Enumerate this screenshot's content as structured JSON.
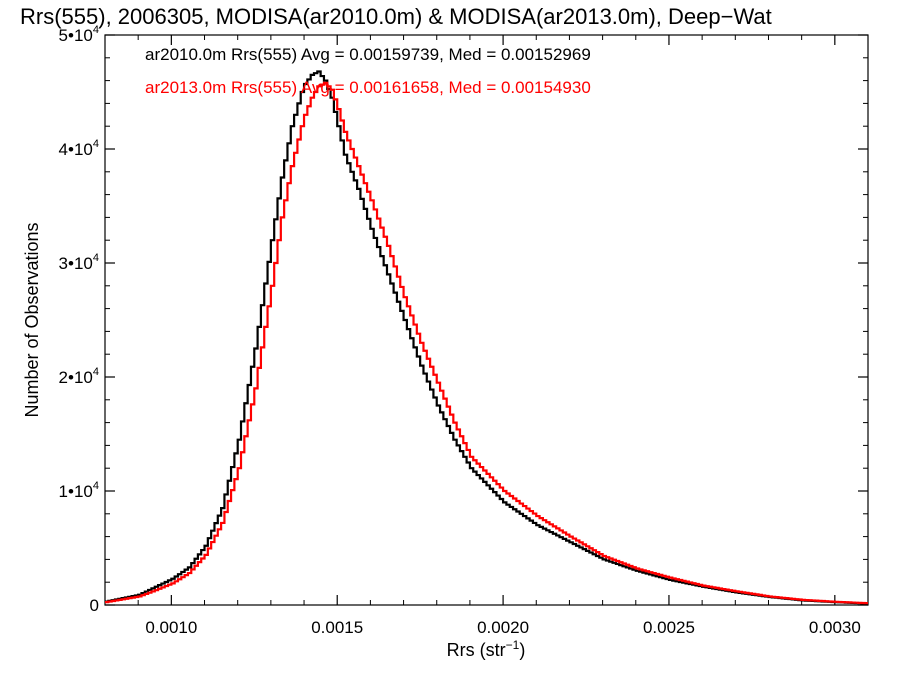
{
  "chart_data": {
    "type": "line",
    "step": true,
    "title": "Rrs(555), 2006305, MODISA(ar2010.0m) & MODISA(ar2013.0m), Deep−Wat",
    "xlabel": "Rrs (str",
    "xlabel_sup": "−1",
    "xlabel_end": ")",
    "ylabel": "Number of Observations",
    "xlim": [
      0.0008,
      0.0031
    ],
    "ylim": [
      0,
      50000
    ],
    "x_ticks": [
      {
        "value": 0.001,
        "label": "0.0010"
      },
      {
        "value": 0.0015,
        "label": "0.0015"
      },
      {
        "value": 0.002,
        "label": "0.0020"
      },
      {
        "value": 0.0025,
        "label": "0.0025"
      },
      {
        "value": 0.003,
        "label": "0.0030"
      }
    ],
    "y_ticks": [
      {
        "value": 0,
        "base": "0",
        "exp": ""
      },
      {
        "value": 10000,
        "base": "1•10",
        "exp": "4"
      },
      {
        "value": 20000,
        "base": "2•10",
        "exp": "4"
      },
      {
        "value": 30000,
        "base": "3•10",
        "exp": "4"
      },
      {
        "value": 40000,
        "base": "4•10",
        "exp": "4"
      },
      {
        "value": 50000,
        "base": "5•10",
        "exp": "4"
      }
    ],
    "grid": false,
    "annotations": [
      {
        "text": "ar2010.0m Rrs(555) Avg = 0.00159739, Med = 0.00152969",
        "color": "#000000"
      },
      {
        "text": "ar2013.0m Rrs(555) Avg = 0.00161658, Med = 0.00154930",
        "color": "#ff0000"
      }
    ],
    "series": [
      {
        "color": "#000000",
        "x": [
          0.0008,
          0.0009,
          0.00095,
          0.001,
          0.00105,
          0.0011,
          0.00115,
          0.0012,
          0.00125,
          0.0013,
          0.00133,
          0.00136,
          0.00139,
          0.0014,
          0.00142,
          0.00144,
          0.00146,
          0.00148,
          0.0015,
          0.00152,
          0.00154,
          0.00156,
          0.0016,
          0.00165,
          0.0017,
          0.00175,
          0.0018,
          0.00185,
          0.0019,
          0.00195,
          0.002,
          0.0021,
          0.0022,
          0.0023,
          0.0024,
          0.0025,
          0.0026,
          0.0027,
          0.0028,
          0.0029,
          0.003,
          0.0031
        ],
        "y": [
          300,
          900,
          1600,
          2300,
          3300,
          5200,
          8500,
          14500,
          22500,
          32000,
          37500,
          42000,
          45000,
          45700,
          46500,
          46800,
          46000,
          44500,
          42000,
          39500,
          38000,
          36500,
          33000,
          29000,
          25000,
          21000,
          17500,
          14500,
          12000,
          10500,
          9000,
          7000,
          5500,
          4000,
          3000,
          2200,
          1600,
          1100,
          700,
          400,
          250,
          120
        ]
      },
      {
        "color": "#ff0000",
        "x": [
          0.0008,
          0.0009,
          0.00095,
          0.001,
          0.00105,
          0.0011,
          0.00115,
          0.0012,
          0.00125,
          0.0013,
          0.00133,
          0.00136,
          0.00139,
          0.0014,
          0.00142,
          0.00144,
          0.00146,
          0.00148,
          0.0015,
          0.00152,
          0.00154,
          0.00156,
          0.0016,
          0.00165,
          0.0017,
          0.00175,
          0.0018,
          0.00185,
          0.0019,
          0.00195,
          0.002,
          0.0021,
          0.0022,
          0.0023,
          0.0024,
          0.0025,
          0.0026,
          0.0027,
          0.0028,
          0.0029,
          0.003,
          0.0031
        ],
        "y": [
          250,
          750,
          1300,
          1900,
          2800,
          4400,
          7200,
          12000,
          19000,
          28000,
          34000,
          38500,
          42000,
          43000,
          44500,
          45500,
          45800,
          45200,
          43500,
          41500,
          40000,
          38500,
          35500,
          31500,
          27000,
          23000,
          19500,
          16000,
          13000,
          11500,
          10000,
          7800,
          6000,
          4300,
          3200,
          2400,
          1700,
          1200,
          750,
          450,
          280,
          150
        ]
      }
    ]
  }
}
